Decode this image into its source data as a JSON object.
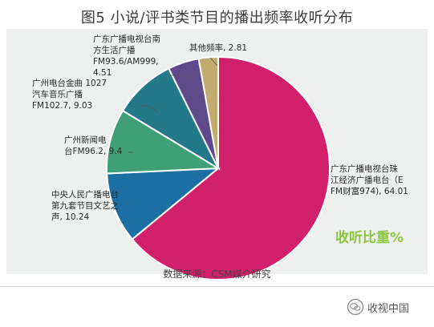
{
  "title": "图5 小说/评书类节目的播出频率收听分布",
  "chart_data": {
    "type": "pie",
    "metric_label": "收听比重%",
    "slices": [
      {
        "label": "广东广播电视台珠江经济广播电台（EFM财富974）",
        "value": 64.01,
        "color": "#d11f6b",
        "label_lines": [
          "广东广播电视台珠",
          "江经济广播电台（E",
          "FM财富974), 64.01"
        ]
      },
      {
        "label": "中央人民广播电台第九套节目文艺之声",
        "value": 10.24,
        "color": "#1c6fa5",
        "label_lines": [
          "中央人民广播电台",
          "第九套节目文艺之",
          "声, 10.24"
        ]
      },
      {
        "label": "广州新闻电台FM96.2",
        "value": 9.4,
        "color": "#3ea074",
        "label_lines": [
          "广州新闻电",
          "台FM96.2, 9.4"
        ]
      },
      {
        "label": "广州电台金曲1027汽车音乐广播FM102.7",
        "value": 9.03,
        "color": "#23788a",
        "label_lines": [
          "广州电台金曲 1027",
          "汽车音乐广播",
          "FM102.7, 9.03"
        ]
      },
      {
        "label": "广东广播电视台南方生活广播FM93.6/AM999",
        "value": 4.51,
        "color": "#5f4a8b",
        "label_lines": [
          "广东广播电视台南",
          "方生活广播",
          "FM93.6/AM999,",
          "4.51"
        ]
      },
      {
        "label": "其他频率",
        "value": 2.81,
        "color": "#c2ab6f",
        "label_lines": [
          "其他频率, 2.81"
        ]
      }
    ]
  },
  "source": "数据来源：CSM媒介研究",
  "watermark": "收视中国"
}
